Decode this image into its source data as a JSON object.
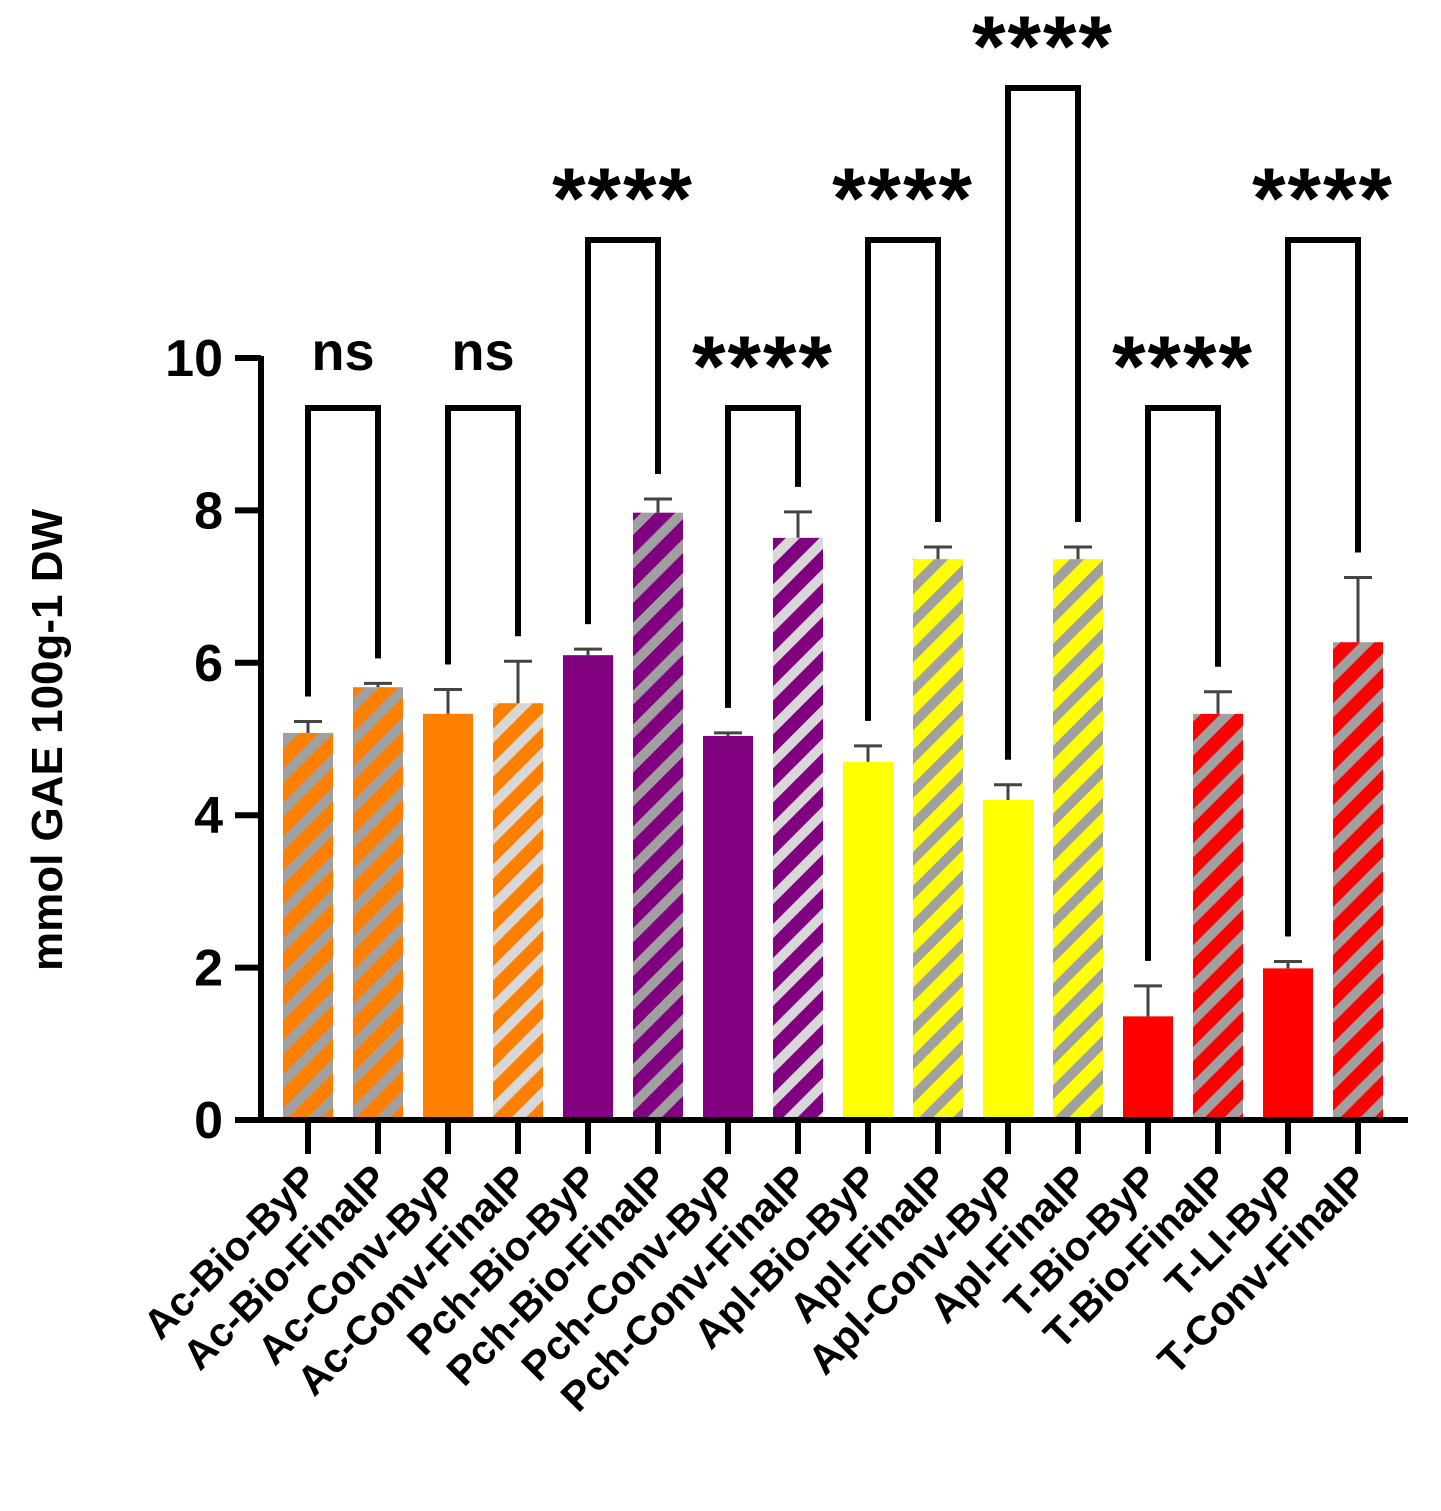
{
  "chart_data": {
    "type": "bar",
    "ylabel": "mmol GAE 100g-1 DW",
    "xlabel": "",
    "ylim": [
      0,
      10
    ],
    "yticks": [
      0,
      2,
      4,
      6,
      8,
      10
    ],
    "grid": false,
    "categories": [
      "Ac-Bio-ByP",
      "Ac-Bio-FinalP",
      "Ac-Conv-ByP",
      "Ac-Conv-FinalP",
      "Pch-Bio-ByP",
      "Pch-Bio-FinalP",
      "Pch-Conv-ByP",
      "Pch-Conv-FinalP",
      "Apl-Bio-ByP",
      "Apl-FinalP",
      "Apl-Conv-ByP",
      "Apl-FinalP",
      "T-Bio-ByP",
      "T-Bio-FinalP",
      "T-LI-ByP",
      "T-Conv-FinalP"
    ],
    "values": [
      5.08,
      5.68,
      5.33,
      5.47,
      6.1,
      7.97,
      5.04,
      7.64,
      4.7,
      7.36,
      4.2,
      7.36,
      1.36,
      5.33,
      1.99,
      6.27
    ],
    "errors": [
      0.15,
      0.05,
      0.32,
      0.55,
      0.08,
      0.18,
      0.04,
      0.34,
      0.21,
      0.16,
      0.2,
      0.16,
      0.4,
      0.29,
      0.09,
      0.85
    ],
    "fill_colors": [
      "#FF8000",
      "#FF8000",
      "#FF8000",
      "#FF8000",
      "#800080",
      "#800080",
      "#800080",
      "#800080",
      "#FFFF00",
      "#FFFF00",
      "#FFFF00",
      "#FFFF00",
      "#FF0000",
      "#FF0000",
      "#FF0000",
      "#FF0000"
    ],
    "stripe_colors": [
      "#A0A0A0",
      "#A0A0A0",
      null,
      "#D8D8D8",
      null,
      "#A0A0A0",
      null,
      "#D8D8D8",
      null,
      "#A0A0A0",
      null,
      "#A0A0A0",
      null,
      "#A0A0A0",
      null,
      "#A0A0A0"
    ],
    "comparisons": [
      {
        "from": 0,
        "to": 1,
        "label": "ns"
      },
      {
        "from": 2,
        "to": 3,
        "label": "ns"
      },
      {
        "from": 4,
        "to": 5,
        "label": "****"
      },
      {
        "from": 6,
        "to": 7,
        "label": "****"
      },
      {
        "from": 8,
        "to": 9,
        "label": "****"
      },
      {
        "from": 10,
        "to": 11,
        "label": "****"
      },
      {
        "from": 12,
        "to": 13,
        "label": "****"
      },
      {
        "from": 14,
        "to": 15,
        "label": "****"
      }
    ]
  }
}
